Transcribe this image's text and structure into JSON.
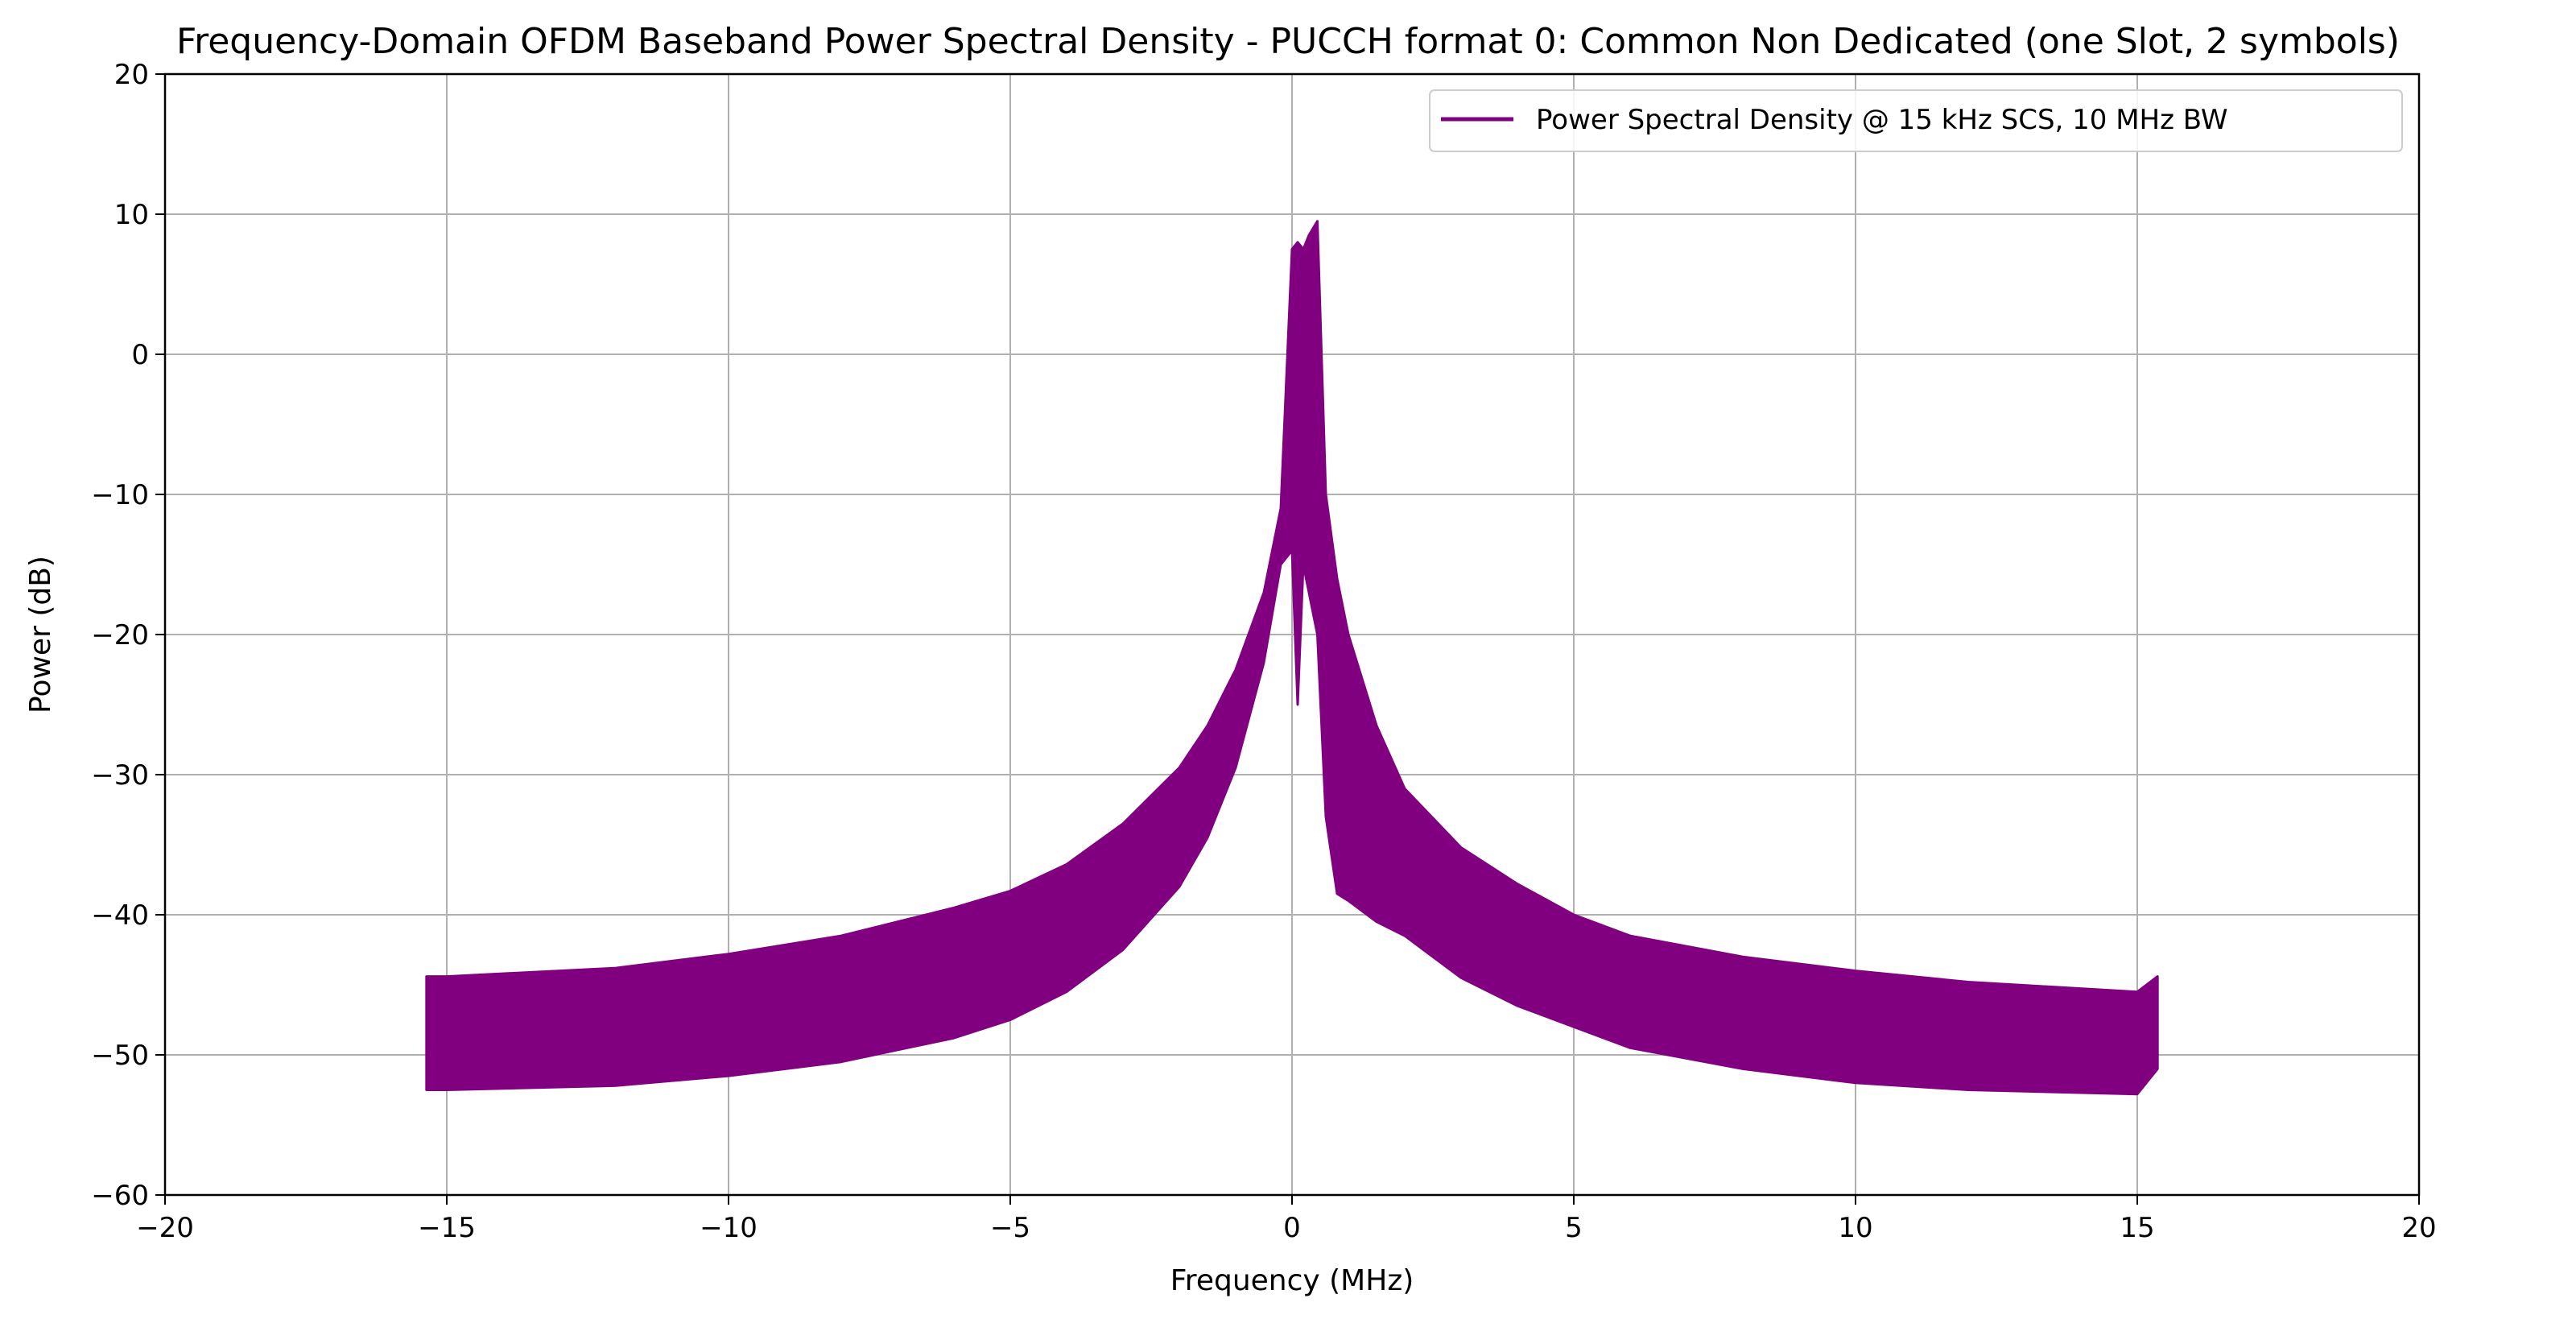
{
  "chart_data": {
    "type": "area",
    "title": "Frequency-Domain OFDM Baseband Power Spectral Density - PUCCH format 0: Common Non Dedicated (one Slot, 2 symbols)",
    "xlabel": "Frequency (MHz)",
    "ylabel": "Power (dB)",
    "xlim": [
      -20,
      20
    ],
    "ylim": [
      -60,
      20
    ],
    "xticks": [
      -20,
      -15,
      -10,
      -5,
      0,
      5,
      10,
      15,
      20
    ],
    "yticks": [
      -60,
      -50,
      -40,
      -30,
      -20,
      -10,
      0,
      10,
      20
    ],
    "xtick_labels": [
      "−20",
      "−15",
      "−10",
      "−5",
      "0",
      "5",
      "10",
      "15",
      "20"
    ],
    "ytick_labels": [
      "−60",
      "−50",
      "−40",
      "−30",
      "−20",
      "−10",
      "0",
      "10",
      "20"
    ],
    "grid": true,
    "legend_position": "top-right",
    "series": [
      {
        "name": "Power Spectral Density @ 15 kHz SCS, 10 MHz BW",
        "color": "#800080",
        "x_range": [
          -15.36,
          15.36
        ],
        "upper_envelope": {
          "x": [
            -15.36,
            -15,
            -12,
            -10,
            -8,
            -6,
            -5,
            -4,
            -3,
            -2,
            -1.5,
            -1,
            -0.5,
            -0.2,
            0,
            0.1,
            0.2,
            0.3,
            0.45,
            0.6,
            0.8,
            1,
            1.5,
            2,
            3,
            4,
            5,
            6,
            8,
            10,
            12,
            15,
            15.36
          ],
          "y": [
            -44.4,
            -44.4,
            -43.8,
            -42.8,
            -41.5,
            -39.5,
            -38.3,
            -36.4,
            -33.5,
            -29.5,
            -26.5,
            -22.5,
            -17,
            -11,
            7.5,
            8,
            7.5,
            8.5,
            9.5,
            -10,
            -16,
            -20,
            -26.5,
            -31,
            -35.2,
            -37.8,
            -40,
            -41.5,
            -43,
            -44,
            -44.8,
            -45.5,
            -44.4
          ]
        },
        "lower_envelope": {
          "x": [
            -15.36,
            -15,
            -12,
            -10,
            -8,
            -6,
            -5,
            -4,
            -3,
            -2,
            -1.5,
            -1,
            -0.5,
            -0.2,
            0,
            0.1,
            0.2,
            0.3,
            0.45,
            0.6,
            0.8,
            1,
            1.5,
            2,
            3,
            4,
            5,
            6,
            8,
            10,
            12,
            15,
            15.36
          ],
          "y": [
            -52.5,
            -52.5,
            -52.2,
            -51.5,
            -50.5,
            -48.8,
            -47.5,
            -45.5,
            -42.5,
            -38,
            -34.5,
            -29.5,
            -22,
            -15,
            -14,
            -25,
            -15,
            -17,
            -20,
            -33,
            -38.5,
            -39,
            -40.5,
            -41.5,
            -44.5,
            -46.5,
            -48,
            -49.5,
            -51,
            -52,
            -52.5,
            -52.8,
            -51
          ]
        }
      }
    ]
  }
}
